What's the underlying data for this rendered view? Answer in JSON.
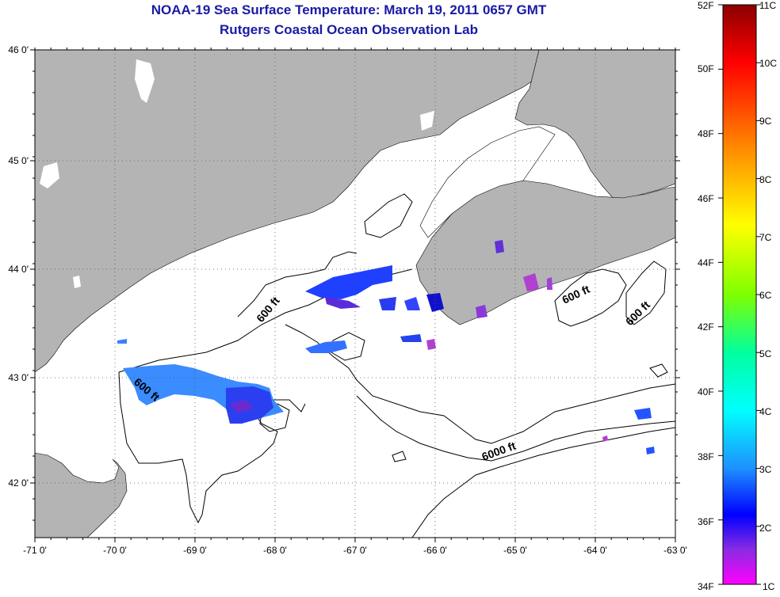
{
  "header": {
    "title": "NOAA-19 Sea Surface Temperature:  March 19, 2011 0657 GMT",
    "subtitle": "Rutgers Coastal Ocean Observation Lab"
  },
  "map": {
    "lon_ticks": [
      "-71 0'",
      "-70 0'",
      "-69 0'",
      "-68 0'",
      "-67 0'",
      "-66 0'",
      "-65 0'",
      "-64 0'",
      "-63 0'"
    ],
    "lat_ticks": [
      "46 0'",
      "45 0'",
      "44 0'",
      "43 0'",
      "42 0'"
    ],
    "land_color": "#b4b4b4",
    "water_color": "#ffffff",
    "contour_labels": [
      "600 ft",
      "600 ft",
      "600 ft",
      "600 ft",
      "6000 ft"
    ]
  },
  "colorbar": {
    "fahrenheit_labels": [
      "52F",
      "50F",
      "48F",
      "46F",
      "44F",
      "42F",
      "40F",
      "38F",
      "36F",
      "34F"
    ],
    "celsius_labels": [
      "11C",
      "10C",
      "9C",
      "8C",
      "7C",
      "6C",
      "5C",
      "4C",
      "3C",
      "2C",
      "1C"
    ],
    "colors": [
      "#8b0000",
      "#ff0000",
      "#ff8c00",
      "#ffff00",
      "#7fff00",
      "#00ff7f",
      "#00ffff",
      "#1e90ff",
      "#0000ff",
      "#8a2be2",
      "#ff00ff"
    ]
  }
}
